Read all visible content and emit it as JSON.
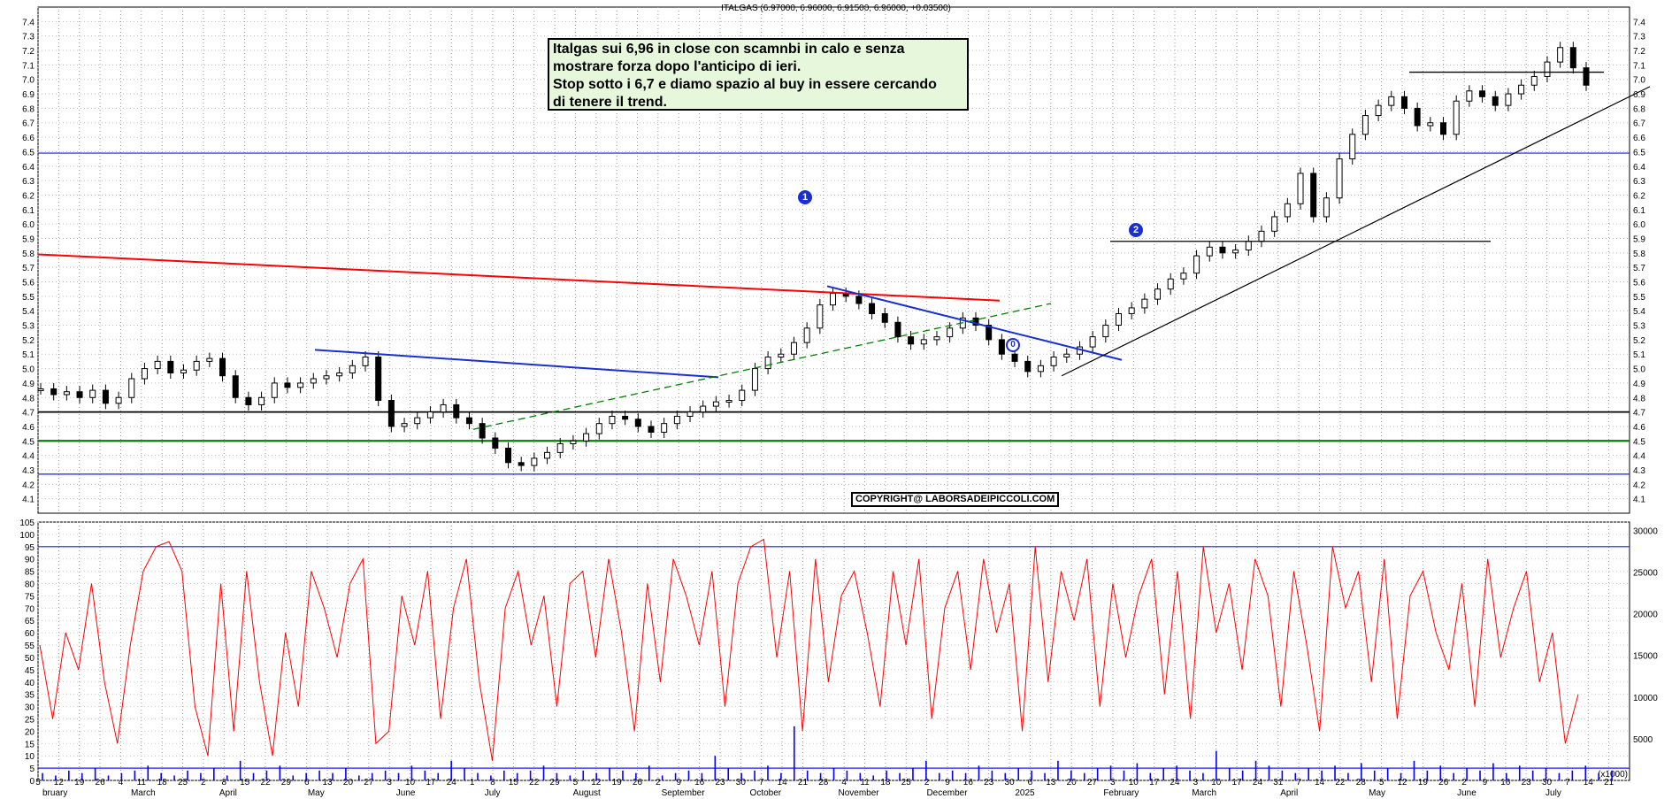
{
  "header": "ITALGAS (6.97000, 6.96000, 6.91500, 6.96000, +0.03500)",
  "annotation": "Italgas sui 6,96 in close con scamnbi in calo e senza\nmostrare forza dopo l'anticipo di ieri.\nStop sotto i 6,7 e diamo spazio al buy in essere cercando\ndi tenere il trend.",
  "copyright": "COPYRIGHT@ LABORSADEIPICCOLI.COM",
  "wave_labels": [
    "1",
    "2",
    "0"
  ],
  "volume_unit": "(x1000)",
  "colors": {
    "support_line": "#1a1aff",
    "resistance_red": "#ff0000",
    "trend_green": "#008000",
    "oscillator": "#ff0000",
    "volume": "#0000ff"
  },
  "chart_data": [
    {
      "type": "candlestick",
      "title": "ITALGAS (6.97000, 6.96000, 6.91500, 6.96000, +0.03500)",
      "ylim": [
        4.0,
        7.5
      ],
      "y_ticks": [
        4.1,
        4.2,
        4.3,
        4.4,
        4.5,
        4.6,
        4.7,
        4.8,
        4.9,
        5.0,
        5.1,
        5.2,
        5.3,
        5.4,
        5.5,
        5.6,
        5.7,
        5.8,
        5.9,
        6.0,
        6.1,
        6.2,
        6.3,
        6.4,
        6.5,
        6.6,
        6.7,
        6.8,
        6.9,
        7.0,
        7.1,
        7.2,
        7.3,
        7.4
      ],
      "x_day_ticks": [
        "5",
        "12",
        "19",
        "26",
        "4",
        "11",
        "18",
        "25",
        "2",
        "8",
        "15",
        "22",
        "29",
        "6",
        "13",
        "20",
        "27",
        "3",
        "10",
        "17",
        "24",
        "1",
        "8",
        "15",
        "22",
        "29",
        "5",
        "12",
        "19",
        "26",
        "2",
        "9",
        "16",
        "23",
        "30",
        "7",
        "14",
        "21",
        "28",
        "4",
        "11",
        "18",
        "25",
        "2",
        "9",
        "16",
        "23",
        "30",
        "6",
        "13",
        "20",
        "27",
        "3",
        "10",
        "17",
        "24",
        "3",
        "10",
        "17",
        "24",
        "31",
        "7",
        "14",
        "22",
        "28",
        "5",
        "12",
        "19",
        "26",
        "2",
        "9",
        "16",
        "23",
        "30",
        "7",
        "14",
        "21"
      ],
      "x_month_ticks": [
        "bruary",
        "March",
        "April",
        "May",
        "June",
        "July",
        "August",
        "September",
        "October",
        "November",
        "December",
        "2025",
        "February",
        "March",
        "April",
        "May",
        "June",
        "July"
      ],
      "close": [
        4.86,
        4.82,
        4.84,
        4.8,
        4.85,
        4.76,
        4.8,
        4.93,
        5.0,
        5.05,
        4.97,
        4.99,
        5.05,
        5.07,
        4.95,
        4.8,
        4.75,
        4.8,
        4.9,
        4.87,
        4.9,
        4.93,
        4.95,
        4.97,
        5.02,
        5.08,
        4.78,
        4.6,
        4.62,
        4.66,
        4.7,
        4.75,
        4.66,
        4.62,
        4.52,
        4.45,
        4.35,
        4.33,
        4.38,
        4.42,
        4.48,
        4.5,
        4.55,
        4.62,
        4.67,
        4.65,
        4.6,
        4.56,
        4.62,
        4.67,
        4.7,
        4.74,
        4.77,
        4.78,
        4.85,
        5.0,
        5.08,
        5.1,
        5.18,
        5.28,
        5.44,
        5.52,
        5.5,
        5.45,
        5.38,
        5.32,
        5.22,
        5.17,
        5.2,
        5.22,
        5.28,
        5.35,
        5.3,
        5.2,
        5.1,
        5.05,
        4.98,
        5.02,
        5.08,
        5.1,
        5.15,
        5.22,
        5.3,
        5.38,
        5.42,
        5.48,
        5.55,
        5.62,
        5.66,
        5.78,
        5.84,
        5.8,
        5.82,
        5.88,
        5.95,
        6.05,
        6.14,
        6.35,
        6.05,
        6.18,
        6.45,
        6.62,
        6.75,
        6.82,
        6.88,
        6.8,
        6.68,
        6.7,
        6.62,
        6.85,
        6.92,
        6.88,
        6.82,
        6.9,
        6.96,
        7.02,
        7.12,
        7.22,
        7.08,
        6.96
      ],
      "levels": {
        "support_high": 6.49,
        "black_support": 4.7,
        "green_support": 4.5,
        "blue_support_low": 4.27,
        "horizontal_top": 7.05,
        "neckline": 5.88
      },
      "trendlines": [
        {
          "color": "red",
          "from": [
            "bruary",
            5.79
          ],
          "to": [
            "December",
            5.47
          ]
        },
        {
          "color": "blue",
          "from": [
            "May",
            5.13
          ],
          "to": [
            "September",
            4.94
          ]
        },
        {
          "color": "blue",
          "from": [
            "October",
            5.57
          ],
          "to": [
            "2025",
            5.06
          ]
        },
        {
          "color": "green-dashed",
          "from": [
            "July",
            4.58
          ],
          "to": [
            "December",
            5.45
          ]
        },
        {
          "color": "black",
          "from": [
            "2025",
            4.95
          ],
          "to": [
            "July",
            6.95
          ]
        }
      ]
    },
    {
      "type": "line+bar",
      "left_ylim": [
        0,
        105
      ],
      "left_y_ticks": [
        0,
        5,
        10,
        15,
        20,
        25,
        30,
        35,
        40,
        45,
        50,
        55,
        60,
        65,
        70,
        75,
        80,
        85,
        90,
        95,
        100,
        105
      ],
      "right_y_ticks": [
        5000,
        10000,
        15000,
        20000,
        25000,
        30000
      ],
      "reference_line": 95,
      "volume_reference": 5,
      "series": [
        {
          "values": [
            55,
            25,
            60,
            45,
            80,
            40,
            15,
            55,
            85,
            95,
            97,
            85,
            30,
            10,
            80,
            20,
            85,
            40,
            10,
            60,
            30,
            85,
            70,
            50,
            80,
            90,
            15,
            20,
            75,
            55,
            85,
            25,
            70,
            90,
            40,
            8,
            70,
            85,
            55,
            75,
            30,
            80,
            85,
            50,
            90,
            60,
            20,
            80,
            40,
            90,
            75,
            55,
            85,
            30,
            80,
            95,
            98,
            50,
            85,
            20,
            90,
            40,
            75,
            85,
            60,
            30,
            85,
            55,
            90,
            25,
            70,
            85,
            45,
            90,
            60,
            80,
            20,
            95,
            40,
            85,
            65,
            90,
            30,
            80,
            50,
            75,
            90,
            35,
            85,
            25,
            95,
            60,
            80,
            45,
            90,
            75,
            30,
            85,
            55,
            20,
            95,
            70,
            85,
            40,
            90,
            25,
            75,
            85,
            60,
            45,
            80,
            30,
            90,
            50,
            70,
            85,
            40,
            60,
            15,
            35
          ]
        },
        {
          "values": [
            3,
            2,
            4,
            3,
            5,
            2,
            3,
            4,
            6,
            3,
            2,
            4,
            3,
            5,
            2,
            8,
            3,
            4,
            6,
            2,
            3,
            4,
            3,
            5,
            2,
            3,
            4,
            3,
            6,
            4,
            3,
            8,
            5,
            3,
            2,
            4,
            3,
            4,
            6,
            3,
            2,
            4,
            3,
            5,
            4,
            3,
            6,
            2,
            3,
            4,
            3,
            10,
            5,
            3,
            4,
            6,
            3,
            22,
            4,
            3,
            5,
            4,
            3,
            2,
            4,
            3,
            5,
            8,
            3,
            4,
            3,
            6,
            4,
            3,
            5,
            4,
            3,
            8,
            4,
            3,
            5,
            6,
            4,
            7,
            3,
            5,
            6,
            4,
            3,
            12,
            5,
            4,
            8,
            6,
            4,
            3,
            5,
            4,
            6,
            3,
            7,
            4,
            5,
            3,
            8,
            4,
            6,
            3,
            5,
            4,
            7,
            3,
            6,
            4,
            5,
            3,
            4,
            6,
            3,
            4
          ]
        }
      ]
    }
  ]
}
